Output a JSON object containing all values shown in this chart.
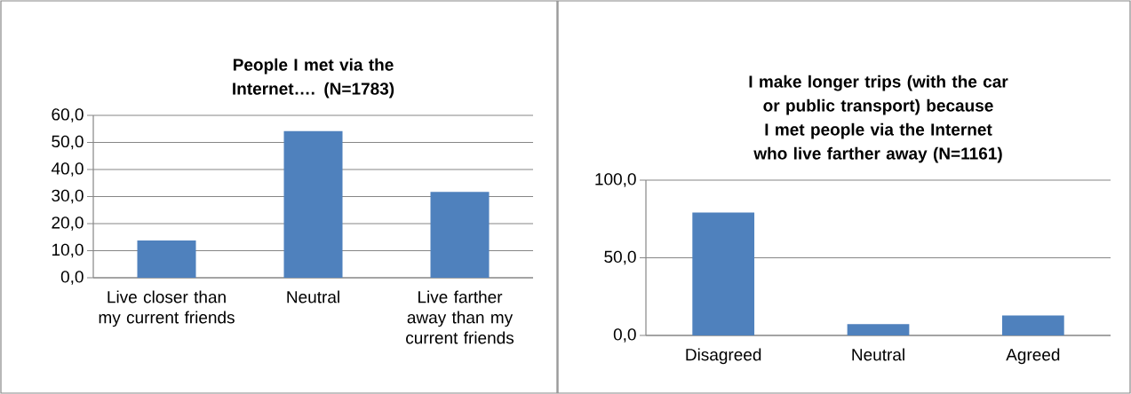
{
  "chart_data": [
    {
      "type": "bar",
      "title": "People I met via the Internet…. (N=1783)",
      "categories": [
        "Live closer than my current friends",
        "Neutral",
        "Live farther away than my current friends"
      ],
      "values": [
        13.8,
        54.2,
        31.7
      ],
      "color": "#4f81bd",
      "ylim": [
        0,
        60
      ],
      "yticks": [
        {
          "value": 0,
          "label": "0,0"
        },
        {
          "value": 10,
          "label": "10,0"
        },
        {
          "value": 20,
          "label": "20,0"
        },
        {
          "value": 30,
          "label": "30,0"
        },
        {
          "value": 40,
          "label": "40,0"
        },
        {
          "value": 50,
          "label": "50,0"
        },
        {
          "value": 60,
          "label": "60,0"
        }
      ],
      "grid": "y"
    },
    {
      "type": "bar",
      "title": "I make longer trips (with the car or public transport) because I met people via the Internet who live farther away (N=1161)",
      "categories": [
        "Disagreed",
        "Neutral",
        "Agreed"
      ],
      "values": [
        79.1,
        7.3,
        12.9
      ],
      "color": "#4f81bd",
      "ylim": [
        0,
        100
      ],
      "yticks": [
        {
          "value": 0,
          "label": "0,0"
        },
        {
          "value": 50,
          "label": "50,0"
        },
        {
          "value": 100,
          "label": "100,0"
        }
      ],
      "grid": "y"
    }
  ]
}
